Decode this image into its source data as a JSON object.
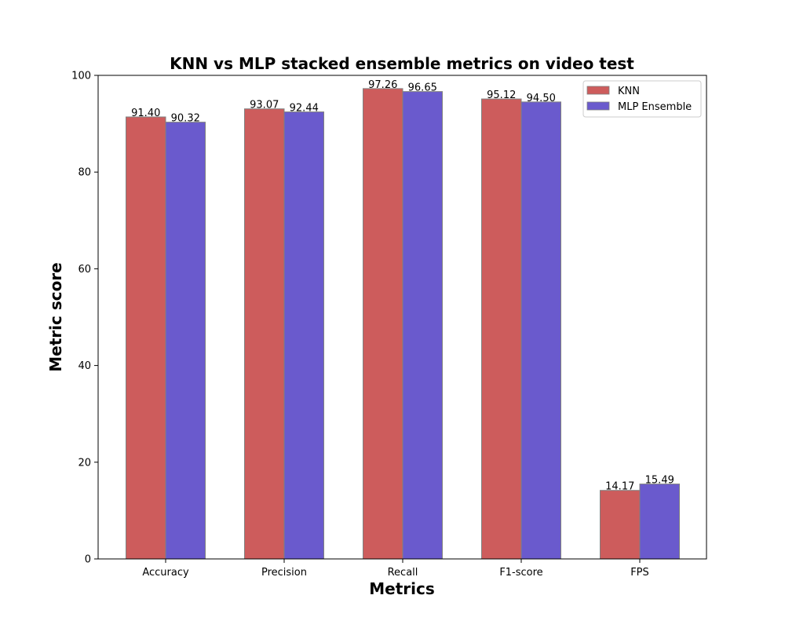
{
  "chart_data": {
    "type": "bar",
    "title": "KNN vs MLP stacked ensemble metrics on video test",
    "xlabel": "Metrics",
    "ylabel": "Metric score",
    "categories": [
      "Accuracy",
      "Precision",
      "Recall",
      "F1-score",
      "FPS"
    ],
    "series": [
      {
        "name": "KNN",
        "color": "#cd5c5c",
        "values": [
          91.4,
          93.07,
          97.26,
          95.12,
          14.17
        ]
      },
      {
        "name": "MLP Ensemble",
        "color": "#6a5acd",
        "values": [
          90.32,
          92.44,
          96.65,
          94.5,
          15.49
        ]
      }
    ],
    "ylim": [
      0,
      100
    ],
    "yticks": [
      0,
      20,
      40,
      60,
      80,
      100
    ],
    "grid": false,
    "legend_position": "top-right",
    "bar_edge_color": "#808080"
  }
}
